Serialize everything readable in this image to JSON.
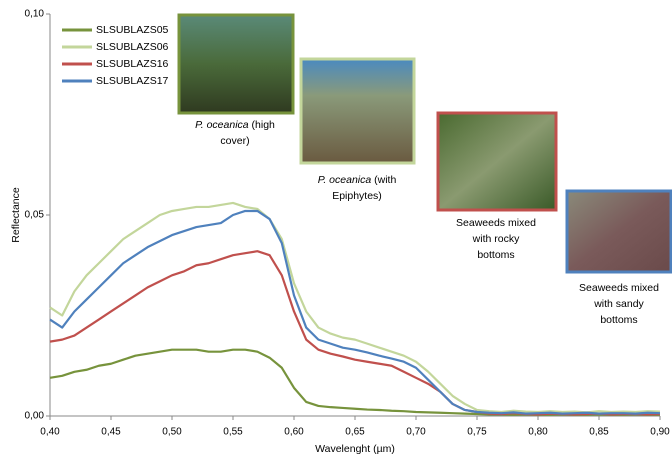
{
  "chart_data": {
    "type": "line",
    "x_label": "Wavelenght (µm)",
    "y_label": "Reflectance",
    "xlim": [
      0.4,
      0.9
    ],
    "ylim": [
      0,
      0.1
    ],
    "xticks": [
      {
        "value": 0.4,
        "label": "0,40"
      },
      {
        "value": 0.45,
        "label": "0,45"
      },
      {
        "value": 0.5,
        "label": "0,50"
      },
      {
        "value": 0.55,
        "label": "0,55"
      },
      {
        "value": 0.6,
        "label": "0,60"
      },
      {
        "value": 0.65,
        "label": "0,65"
      },
      {
        "value": 0.7,
        "label": "0,70"
      },
      {
        "value": 0.75,
        "label": "0,75"
      },
      {
        "value": 0.8,
        "label": "0,80"
      },
      {
        "value": 0.85,
        "label": "0,85"
      },
      {
        "value": 0.9,
        "label": "0,90"
      }
    ],
    "yticks": [
      {
        "value": 0,
        "label": "0,00"
      },
      {
        "value": 0.05,
        "label": "0,05"
      },
      {
        "value": 0.1,
        "label": "0,10"
      }
    ],
    "grid": false,
    "legend": "upper left",
    "x": [
      0.4,
      0.41,
      0.42,
      0.43,
      0.44,
      0.45,
      0.46,
      0.47,
      0.48,
      0.49,
      0.5,
      0.51,
      0.52,
      0.53,
      0.54,
      0.55,
      0.56,
      0.57,
      0.58,
      0.59,
      0.6,
      0.61,
      0.62,
      0.63,
      0.64,
      0.65,
      0.66,
      0.67,
      0.68,
      0.69,
      0.7,
      0.71,
      0.72,
      0.73,
      0.74,
      0.75,
      0.76,
      0.77,
      0.78,
      0.79,
      0.8,
      0.81,
      0.82,
      0.83,
      0.84,
      0.85,
      0.86,
      0.87,
      0.88,
      0.89,
      0.9
    ],
    "series": [
      {
        "name": "SLSUBLAZS05",
        "color": "#77933c",
        "values": [
          0.0095,
          0.01,
          0.011,
          0.0115,
          0.0125,
          0.013,
          0.014,
          0.015,
          0.0155,
          0.016,
          0.0165,
          0.0165,
          0.0165,
          0.016,
          0.016,
          0.0165,
          0.0165,
          0.016,
          0.0145,
          0.012,
          0.007,
          0.0035,
          0.0025,
          0.0022,
          0.002,
          0.0018,
          0.0016,
          0.0015,
          0.0013,
          0.0012,
          0.001,
          0.0009,
          0.0008,
          0.0007,
          0.0006,
          0.0005,
          0.0004,
          0.0004,
          0.0003,
          0.0004,
          0.0003,
          0.0003,
          0.0004,
          0.0003,
          0.0003,
          0.0004,
          0.0003,
          0.0003,
          0.0004,
          0.0003,
          0.0003
        ]
      },
      {
        "name": "SLSUBLAZS06",
        "color": "#c3d69b",
        "values": [
          0.027,
          0.025,
          0.031,
          0.035,
          0.038,
          0.041,
          0.044,
          0.046,
          0.048,
          0.05,
          0.051,
          0.0515,
          0.052,
          0.052,
          0.0525,
          0.053,
          0.052,
          0.0515,
          0.049,
          0.044,
          0.033,
          0.026,
          0.022,
          0.0205,
          0.0195,
          0.019,
          0.018,
          0.017,
          0.016,
          0.015,
          0.0135,
          0.011,
          0.008,
          0.005,
          0.003,
          0.0015,
          0.0012,
          0.001,
          0.0013,
          0.0011,
          0.001,
          0.0012,
          0.001,
          0.0011,
          0.0009,
          0.0012,
          0.001,
          0.0011,
          0.001,
          0.0012,
          0.0011
        ]
      },
      {
        "name": "SLSUBLAZS16",
        "color": "#c0504d",
        "values": [
          0.0185,
          0.019,
          0.02,
          0.022,
          0.024,
          0.026,
          0.028,
          0.03,
          0.032,
          0.0335,
          0.035,
          0.036,
          0.0375,
          0.038,
          0.039,
          0.04,
          0.0405,
          0.041,
          0.04,
          0.035,
          0.026,
          0.019,
          0.0165,
          0.0155,
          0.0148,
          0.014,
          0.0135,
          0.013,
          0.0125,
          0.011,
          0.0095,
          0.008,
          0.006,
          0.003,
          0.0015,
          0.001,
          0.0006,
          0.0005,
          0.0007,
          0.0005,
          0.0004,
          0.0006,
          0.0005,
          0.0004,
          0.0005,
          0.0006,
          0.0004,
          0.0005,
          0.0005,
          0.0004,
          0.0005
        ]
      },
      {
        "name": "SLSUBLAZS17",
        "color": "#4f81bd",
        "values": [
          0.024,
          0.022,
          0.026,
          0.029,
          0.032,
          0.035,
          0.038,
          0.04,
          0.042,
          0.0435,
          0.045,
          0.046,
          0.047,
          0.0475,
          0.048,
          0.05,
          0.051,
          0.051,
          0.049,
          0.043,
          0.03,
          0.022,
          0.019,
          0.018,
          0.017,
          0.0165,
          0.0158,
          0.015,
          0.0143,
          0.0135,
          0.012,
          0.009,
          0.006,
          0.003,
          0.0015,
          0.001,
          0.0008,
          0.0007,
          0.0009,
          0.0006,
          0.0007,
          0.0008,
          0.0006,
          0.0007,
          0.0008,
          0.0006,
          0.0007,
          0.0007,
          0.0006,
          0.0008,
          0.0007
        ]
      }
    ],
    "annotations": [
      {
        "italic": "P. oceanica",
        "lines": [
          " (high",
          "cover)"
        ],
        "frame_color": "#77933c"
      },
      {
        "italic": "P. oceanica",
        "lines": [
          " (with",
          "Epiphytes)"
        ],
        "frame_color": "#c3d69b"
      },
      {
        "lines": [
          "Seaweeds mixed",
          "with rocky",
          "bottoms"
        ],
        "frame_color": "#c0504d"
      },
      {
        "lines": [
          "Seaweeds mixed",
          "with sandy",
          "bottoms"
        ],
        "frame_color": "#4f81bd"
      }
    ]
  }
}
